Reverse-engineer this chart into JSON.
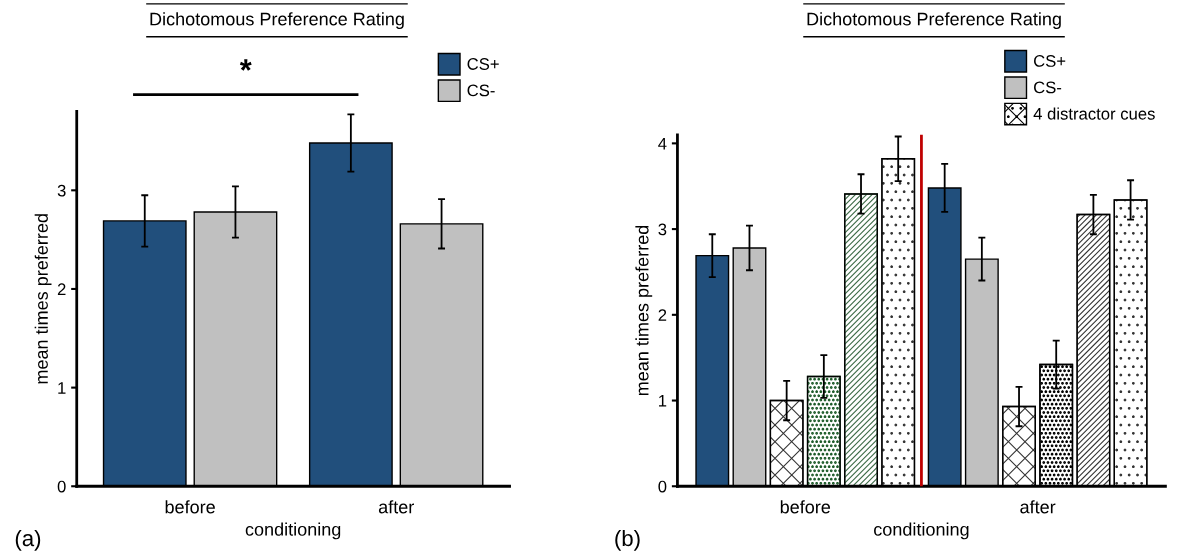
{
  "chart_data": [
    {
      "type": "bar",
      "title": "Dichotomous Preference Rating",
      "xlabel": "conditioning",
      "ylabel": "mean times preferred",
      "categories": [
        "before",
        "after"
      ],
      "series": [
        {
          "name": "CS+",
          "color": "#214f7c",
          "values": [
            2.69,
            3.48
          ],
          "errors": [
            0.26,
            0.29
          ]
        },
        {
          "name": "CS-",
          "color": "#c0c0c0",
          "values": [
            2.78,
            2.66
          ],
          "errors": [
            0.26,
            0.25
          ]
        }
      ],
      "ylim": [
        0,
        3.8
      ],
      "yticks": [
        0,
        1,
        2,
        3
      ],
      "grid": false,
      "legend": "top right",
      "annotations": [
        "*",
        "(a)"
      ]
    },
    {
      "type": "bar",
      "title": "Dichotomous Preference Rating",
      "xlabel": "conditioning",
      "ylabel": "mean times preferred",
      "categories": [
        "before",
        "after"
      ],
      "series": [
        {
          "name": "CS+",
          "color": "#214f7c",
          "values": [
            2.69,
            3.48
          ],
          "errors": [
            0.25,
            0.28
          ]
        },
        {
          "name": "CS-",
          "color": "#c0c0c0",
          "values": [
            2.78,
            2.65
          ],
          "errors": [
            0.26,
            0.25
          ]
        },
        {
          "name": "4 distractor cues",
          "color": "#ffffff",
          "colors": [
            "#333333",
            "#333333"
          ],
          "values": [
            1.0,
            0.93
          ],
          "errors": [
            0.23,
            0.23
          ]
        },
        {
          "color": "#ffffff",
          "colors": [
            "#1d5c2a",
            "#000000"
          ],
          "values": [
            1.28,
            1.42
          ],
          "errors": [
            0.25,
            0.28
          ]
        },
        {
          "color": "#ffffff",
          "colors": [
            "#3d6b47",
            "#333333"
          ],
          "values": [
            3.41,
            3.17
          ],
          "errors": [
            0.23,
            0.23
          ]
        },
        {
          "color": "#ffffff",
          "colors": [
            "#333333",
            "#333333"
          ],
          "values": [
            3.82,
            3.34
          ],
          "errors": [
            0.26,
            0.23
          ]
        }
      ],
      "ylim": [
        0,
        4.1
      ],
      "yticks": [
        0,
        1,
        2,
        3,
        4
      ],
      "grid": false,
      "legend": "top right",
      "ref_lines": [
        {
          "axis": "x",
          "value": "after",
          "color": "#c00000"
        }
      ],
      "annotations": [
        "(b)"
      ]
    }
  ]
}
